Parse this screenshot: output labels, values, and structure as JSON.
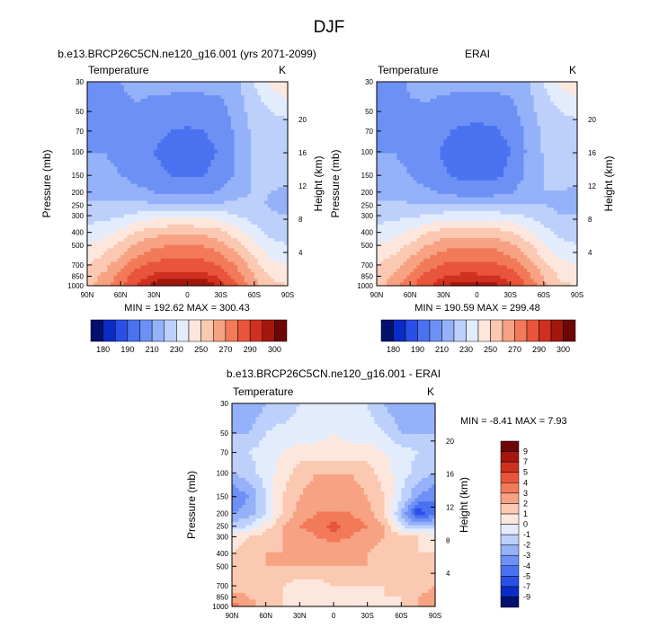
{
  "figure": {
    "title": "DJF"
  },
  "panels": [
    {
      "id": "model",
      "title": "b.e13.BRCP26C5CN.ne120_g16.001 (yrs 2071-2099)",
      "left_label": "Temperature",
      "right_label": "K",
      "ylabel": "Pressure (mb)",
      "y2label": "Height (km)",
      "minmax_text": "MIN = 192.62  MAX = 300.43"
    },
    {
      "id": "obs",
      "title": "ERAI",
      "left_label": "Temperature",
      "right_label": "K",
      "ylabel": "Pressure (mb)",
      "y2label": "Height (km)",
      "minmax_text": "MIN = 190.59  MAX = 299.48"
    },
    {
      "id": "diff",
      "title": "b.e13.BRCP26C5CN.ne120_g16.001 - ERAI",
      "left_label": "Temperature",
      "right_label": "K",
      "ylabel": "Pressure (mb)",
      "y2label": "Height (km)",
      "minmax_text": "MIN = -8.41  MAX =   7.93"
    }
  ],
  "chart_data": [
    {
      "type": "heatmap",
      "title": "b.e13.BRCP26C5CN.ne120_g16.001 (yrs 2071-2099)",
      "variable": "Temperature",
      "units": "K",
      "xlabel": "",
      "ylabel": "Pressure (mb)",
      "y2label": "Height (km)",
      "x_ticks": [
        "90N",
        "60N",
        "30N",
        "0",
        "30S",
        "60S",
        "90S"
      ],
      "y_ticks": [
        30,
        50,
        70,
        100,
        150,
        200,
        250,
        300,
        400,
        500,
        700,
        850,
        1000
      ],
      "y2_ticks": [
        4,
        8,
        12,
        16,
        20
      ],
      "ylim": [
        1000,
        30
      ],
      "xlim": [
        90,
        -90
      ],
      "min": 192.62,
      "max": 300.43,
      "colorbar": {
        "levels": [
          180,
          185,
          190,
          200,
          210,
          220,
          230,
          240,
          250,
          260,
          270,
          280,
          290,
          295,
          300
        ],
        "labels": [
          "180",
          "190",
          "210",
          "230",
          "250",
          "270",
          "290",
          "300"
        ],
        "colors": [
          "#04106e",
          "#0a2cc6",
          "#2a4fe6",
          "#4a72f0",
          "#6d90f5",
          "#94b1f9",
          "#bcd0fb",
          "#e2ecfd",
          "#fde7dd",
          "#fbc8b1",
          "#f7a283",
          "#f27a59",
          "#e9553a",
          "#d0301f",
          "#a3170d",
          "#6e0606"
        ]
      },
      "lat": [
        90,
        75,
        60,
        45,
        30,
        15,
        0,
        -15,
        -30,
        -45,
        -60,
        -75,
        -90
      ],
      "pressure": [
        30,
        50,
        70,
        100,
        150,
        200,
        250,
        300,
        400,
        500,
        700,
        850,
        1000
      ],
      "values": [
        [
          203,
          205,
          210,
          214,
          214,
          214,
          214,
          214,
          214,
          218,
          230,
          242,
          250
        ],
        [
          203,
          205,
          208,
          208,
          205,
          204,
          204,
          204,
          206,
          215,
          225,
          230,
          232
        ],
        [
          206,
          208,
          207,
          205,
          202,
          200,
          199,
          200,
          203,
          213,
          223,
          226,
          227
        ],
        [
          210,
          210,
          207,
          203,
          200,
          197,
          196,
          197,
          201,
          212,
          222,
          224,
          225
        ],
        [
          213,
          213,
          210,
          206,
          202,
          200,
          200,
          200,
          203,
          213,
          221,
          222,
          222
        ],
        [
          217,
          217,
          216,
          213,
          210,
          208,
          208,
          208,
          211,
          217,
          221,
          220,
          219
        ],
        [
          222,
          222,
          222,
          223,
          222,
          222,
          222,
          222,
          222,
          223,
          222,
          219,
          218
        ],
        [
          227,
          227,
          229,
          233,
          236,
          237,
          237,
          237,
          235,
          230,
          225,
          221,
          220
        ],
        [
          233,
          236,
          243,
          251,
          256,
          258,
          258,
          257,
          253,
          244,
          235,
          227,
          225
        ],
        [
          240,
          245,
          253,
          262,
          268,
          270,
          270,
          269,
          264,
          254,
          242,
          233,
          230
        ],
        [
          250,
          256,
          266,
          277,
          283,
          285,
          285,
          284,
          279,
          268,
          254,
          243,
          240
        ],
        [
          255,
          262,
          273,
          286,
          292,
          294,
          294,
          293,
          288,
          275,
          260,
          249,
          246
        ],
        [
          257,
          266,
          278,
          291,
          297,
          300,
          300,
          299,
          294,
          280,
          264,
          253,
          250
        ]
      ]
    },
    {
      "type": "heatmap",
      "title": "ERAI",
      "variable": "Temperature",
      "units": "K",
      "xlabel": "",
      "ylabel": "Pressure (mb)",
      "y2label": "Height (km)",
      "x_ticks": [
        "90N",
        "60N",
        "30N",
        "0",
        "30S",
        "60S",
        "90S"
      ],
      "y_ticks": [
        30,
        50,
        70,
        100,
        150,
        200,
        250,
        300,
        400,
        500,
        700,
        850,
        1000
      ],
      "y2_ticks": [
        4,
        8,
        12,
        16,
        20
      ],
      "ylim": [
        1000,
        30
      ],
      "xlim": [
        90,
        -90
      ],
      "min": 190.59,
      "max": 299.48,
      "colorbar": {
        "levels": [
          180,
          185,
          190,
          200,
          210,
          220,
          230,
          240,
          250,
          260,
          270,
          280,
          290,
          295,
          300
        ],
        "labels": [
          "180",
          "190",
          "210",
          "230",
          "250",
          "270",
          "290",
          "300"
        ],
        "colors": [
          "#04106e",
          "#0a2cc6",
          "#2a4fe6",
          "#4a72f0",
          "#6d90f5",
          "#94b1f9",
          "#bcd0fb",
          "#e2ecfd",
          "#fde7dd",
          "#fbc8b1",
          "#f7a283",
          "#f27a59",
          "#e9553a",
          "#d0301f",
          "#a3170d",
          "#6e0606"
        ]
      },
      "lat": [
        90,
        75,
        60,
        45,
        30,
        15,
        0,
        -15,
        -30,
        -45,
        -60,
        -75,
        -90
      ],
      "pressure": [
        30,
        50,
        70,
        100,
        150,
        200,
        250,
        300,
        400,
        500,
        700,
        850,
        1000
      ],
      "values": [
        [
          205,
          207,
          211,
          214,
          214,
          214,
          214,
          214,
          214,
          218,
          230,
          242,
          248
        ],
        [
          204,
          206,
          209,
          208,
          205,
          203,
          203,
          203,
          206,
          215,
          225,
          230,
          232
        ],
        [
          207,
          208,
          207,
          205,
          201,
          199,
          198,
          199,
          202,
          212,
          222,
          226,
          227
        ],
        [
          210,
          210,
          207,
          203,
          199,
          196,
          195,
          196,
          200,
          211,
          221,
          224,
          225
        ],
        [
          213,
          213,
          210,
          205,
          201,
          198,
          198,
          198,
          202,
          212,
          220,
          222,
          222
        ],
        [
          217,
          217,
          215,
          212,
          208,
          206,
          206,
          206,
          209,
          216,
          220,
          220,
          219
        ],
        [
          222,
          222,
          221,
          221,
          220,
          220,
          220,
          220,
          220,
          221,
          220,
          218,
          217
        ],
        [
          227,
          227,
          228,
          231,
          234,
          235,
          235,
          235,
          233,
          229,
          224,
          220,
          220
        ],
        [
          233,
          236,
          242,
          249,
          254,
          256,
          256,
          255,
          251,
          243,
          234,
          227,
          225
        ],
        [
          240,
          245,
          252,
          260,
          266,
          268,
          268,
          267,
          262,
          253,
          241,
          233,
          230
        ],
        [
          250,
          255,
          265,
          275,
          281,
          283,
          283,
          282,
          277,
          267,
          253,
          243,
          240
        ],
        [
          254,
          261,
          272,
          284,
          290,
          292,
          292,
          291,
          286,
          274,
          259,
          248,
          246
        ],
        [
          256,
          265,
          277,
          289,
          295,
          297,
          298,
          297,
          292,
          279,
          263,
          252,
          250
        ]
      ]
    },
    {
      "type": "heatmap",
      "title": "b.e13.BRCP26C5CN.ne120_g16.001 - ERAI",
      "variable": "Temperature",
      "units": "K",
      "xlabel": "",
      "ylabel": "Pressure (mb)",
      "y2label": "Height (km)",
      "x_ticks": [
        "90N",
        "60N",
        "30N",
        "0",
        "30S",
        "60S",
        "90S"
      ],
      "y_ticks": [
        30,
        50,
        70,
        100,
        150,
        200,
        250,
        300,
        400,
        500,
        700,
        850,
        1000
      ],
      "y2_ticks": [
        4,
        8,
        12,
        16,
        20
      ],
      "ylim": [
        1000,
        30
      ],
      "xlim": [
        90,
        -90
      ],
      "min": -8.41,
      "max": 7.93,
      "colorbar": {
        "levels": [
          -9,
          -7,
          -5,
          -4,
          -3,
          -2,
          -1,
          0,
          1,
          2,
          3,
          4,
          5,
          7,
          9
        ],
        "labels": [
          "-9",
          "-7",
          "-5",
          "-4",
          "-3",
          "-2",
          "-1",
          "0",
          "1",
          "2",
          "3",
          "4",
          "5",
          "7",
          "9"
        ],
        "colors": [
          "#04106e",
          "#0a2cc6",
          "#2a4fe6",
          "#4a72f0",
          "#6d90f5",
          "#94b1f9",
          "#bcd0fb",
          "#e2ecfd",
          "#fde7dd",
          "#fbc8b1",
          "#f7a283",
          "#f27a59",
          "#e9553a",
          "#d0301f",
          "#a3170d",
          "#6e0606"
        ]
      },
      "lat": [
        90,
        75,
        60,
        45,
        30,
        15,
        0,
        -15,
        -30,
        -45,
        -60,
        -75,
        -90
      ],
      "pressure": [
        30,
        50,
        70,
        100,
        150,
        200,
        250,
        300,
        400,
        500,
        700,
        850,
        1000
      ],
      "values": [
        [
          -3,
          -3,
          -2,
          -2,
          -1,
          -1,
          -1,
          -1,
          -1,
          -2,
          -3,
          -3,
          -2
        ],
        [
          -2,
          -2,
          -1,
          -0.5,
          -0.5,
          -0.5,
          0,
          -0.5,
          -0.5,
          -1,
          -2,
          -2,
          -2
        ],
        [
          -1.5,
          -1,
          -0.5,
          0,
          0.5,
          0.5,
          0.5,
          0.5,
          0.5,
          0,
          -0.5,
          -1,
          -1.5
        ],
        [
          -2,
          -1.5,
          -0.5,
          0.5,
          1.5,
          2,
          2,
          2,
          1.5,
          0.5,
          -0.5,
          -1.5,
          -2
        ],
        [
          -4,
          -3,
          -1,
          1,
          2,
          2.5,
          2.5,
          2.5,
          2,
          1,
          -1,
          -3,
          -4
        ],
        [
          -3,
          -2.5,
          -1,
          1,
          2.5,
          3,
          3,
          3,
          2.5,
          1,
          -2,
          -6,
          -4
        ],
        [
          -1.5,
          -1,
          0.5,
          2,
          3,
          3.5,
          4.5,
          3.5,
          3,
          2,
          -1,
          -2,
          -1.5
        ],
        [
          0.5,
          1,
          1.5,
          2,
          2.5,
          3,
          3.5,
          3,
          2.5,
          2,
          1.5,
          1,
          0.5
        ],
        [
          1,
          1.5,
          2,
          2,
          2,
          2,
          2,
          2,
          2,
          1.5,
          1.5,
          1,
          1
        ],
        [
          1.5,
          1.5,
          2,
          2,
          2,
          2,
          2,
          2,
          2,
          1.5,
          1.5,
          1,
          1
        ],
        [
          1.5,
          1.5,
          1.5,
          1,
          0.5,
          0.5,
          1,
          1,
          1,
          1,
          1.5,
          1.5,
          2
        ],
        [
          2.5,
          2,
          1.5,
          1,
          0.5,
          0.5,
          0.5,
          0.5,
          0.5,
          1,
          1,
          2,
          2.5
        ],
        [
          3.5,
          2.5,
          1.5,
          1,
          0.5,
          0.5,
          0.5,
          0.5,
          0.5,
          0.5,
          1,
          2,
          3
        ]
      ]
    }
  ]
}
